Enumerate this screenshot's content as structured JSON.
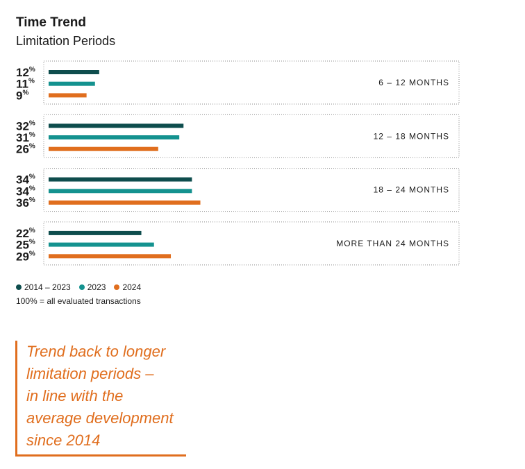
{
  "title": "Time Trend",
  "subtitle": "Limitation Periods",
  "colors": {
    "s1": "#0e4d4d",
    "s2": "#14928f",
    "s3": "#e06e1e"
  },
  "chart_data": {
    "type": "bar",
    "orientation": "horizontal",
    "unit": "%",
    "categories": [
      "6 – 12 MONTHS",
      "12 – 18 MONTHS",
      "18 – 24 MONTHS",
      "MORE THAN 24 MONTHS"
    ],
    "series": [
      {
        "name": "2014 – 2023",
        "values": [
          12,
          32,
          34,
          22
        ]
      },
      {
        "name": "2023",
        "values": [
          11,
          31,
          34,
          25
        ]
      },
      {
        "name": "2024",
        "values": [
          9,
          26,
          36,
          29
        ]
      }
    ],
    "legend_position": "bottom-left",
    "grid": false
  },
  "legend": [
    {
      "label": "2014 – 2023",
      "color": "#0e4d4d"
    },
    {
      "label": "2023",
      "color": "#14928f"
    },
    {
      "label": "2024",
      "color": "#e06e1e"
    }
  ],
  "note": "100% = all evaluated transactions",
  "callout": {
    "lines": [
      "Trend back to longer",
      "limitation periods –",
      "in line with the",
      "average development",
      "since 2014"
    ],
    "color": "#e06e1e"
  }
}
